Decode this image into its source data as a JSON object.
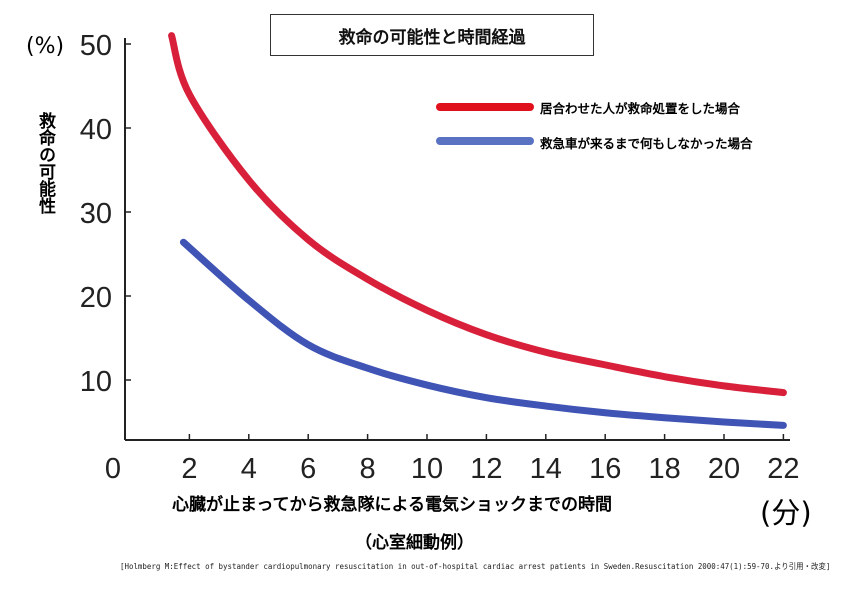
{
  "chart_data": {
    "type": "line",
    "title": "救命の可能性と時間経過",
    "ylabel": "救命の可能性",
    "yunit": "(%)",
    "xlabel": "心臓が止まってから救急隊による電気ショックまでの時間",
    "xlabel_sub": "（心室細動例）",
    "xunit": "(分)",
    "xlim": [
      0,
      22
    ],
    "ylim": [
      0,
      50
    ],
    "xticks": [
      "0",
      "2",
      "4",
      "6",
      "8",
      "10",
      "12",
      "14",
      "16",
      "18",
      "20",
      "22"
    ],
    "yticks": [
      "10",
      "20",
      "30",
      "40",
      "50"
    ],
    "grid": false,
    "legend_position": "top-right",
    "series": [
      {
        "name": "居合わせた人が救命処置をした場合",
        "color": "#d9203a",
        "x": [
          1.4,
          2,
          4,
          6,
          8,
          10,
          12,
          14,
          16,
          18,
          20,
          22
        ],
        "y": [
          51,
          44,
          33.8,
          26.7,
          22,
          18.3,
          15.4,
          13.3,
          11.8,
          10.4,
          9.3,
          8.5
        ]
      },
      {
        "name": "救急車が来るまで何もしなかった場合",
        "color": "#3f54b5",
        "x": [
          1.8,
          4,
          6,
          8,
          10,
          12,
          14,
          16,
          18,
          20,
          22
        ],
        "y": [
          26.4,
          19.5,
          14.2,
          11.4,
          9.4,
          7.9,
          6.9,
          6.1,
          5.5,
          5.0,
          4.6
        ]
      }
    ],
    "legend_colors": [
      "#e0101c",
      "#5a72c2"
    ],
    "source": "[Holmberg M:Effect of bystander cardiopulmonary resuscitation in out-of-hospital cardiac arrest patients in Sweden.Resuscitation 2000:47(1):59-70.より引用・改変]"
  }
}
